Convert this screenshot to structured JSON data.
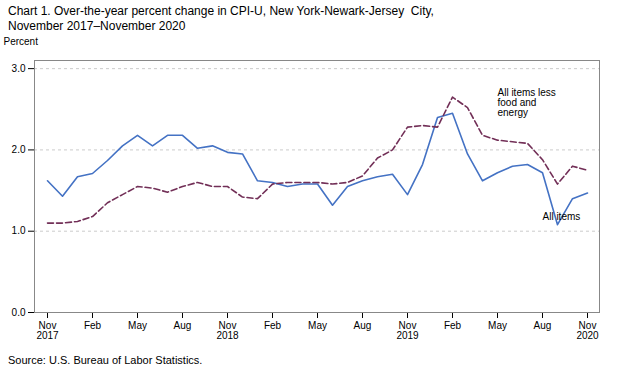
{
  "chart_data": {
    "type": "line",
    "title": "Chart 1. Over-the-year percent change in CPI-U, New York-Newark-Jersey  City,",
    "subtitle": "November 2017–November 2020",
    "y_label": "Percent",
    "caption": "Source: U.S. Bureau of Labor Statistics.",
    "annotations": [
      "All items less\nfood and\nenergy",
      "All items"
    ],
    "categories": [
      "Nov\n2017",
      null,
      null,
      "Feb",
      null,
      null,
      "May",
      null,
      null,
      "Aug",
      null,
      null,
      "Nov\n2018",
      null,
      null,
      "Feb",
      null,
      null,
      "May",
      null,
      null,
      "Aug",
      null,
      null,
      "Nov\n2019",
      null,
      null,
      "Feb",
      null,
      null,
      "May",
      null,
      null,
      "Aug",
      null,
      null,
      "Nov\n2020"
    ],
    "series": [
      {
        "name": "All items",
        "color": "#4472c4",
        "line_style": "solid",
        "values": [
          1.62,
          1.43,
          1.67,
          1.71,
          1.87,
          2.05,
          2.18,
          2.05,
          2.18,
          2.18,
          2.02,
          2.05,
          1.97,
          1.95,
          1.62,
          1.6,
          1.55,
          1.58,
          1.58,
          1.32,
          1.55,
          1.62,
          1.67,
          1.7,
          1.45,
          1.82,
          2.4,
          2.45,
          1.95,
          1.62,
          1.72,
          1.8,
          1.82,
          1.72,
          1.08,
          1.4,
          1.47
        ]
      },
      {
        "name": "All items less food and energy",
        "color": "#722f57",
        "line_style": "dashed",
        "values": [
          1.1,
          1.1,
          1.12,
          1.18,
          1.35,
          1.45,
          1.55,
          1.53,
          1.48,
          1.55,
          1.6,
          1.55,
          1.55,
          1.42,
          1.4,
          1.58,
          1.6,
          1.6,
          1.6,
          1.58,
          1.6,
          1.68,
          1.9,
          2.0,
          2.28,
          2.3,
          2.28,
          2.65,
          2.52,
          2.18,
          2.12,
          2.1,
          2.08,
          1.88,
          1.58,
          1.8,
          1.75
        ]
      }
    ],
    "ylim": [
      0,
      3.1
    ],
    "yticks": [
      0,
      1,
      2,
      3
    ],
    "grid": true
  }
}
